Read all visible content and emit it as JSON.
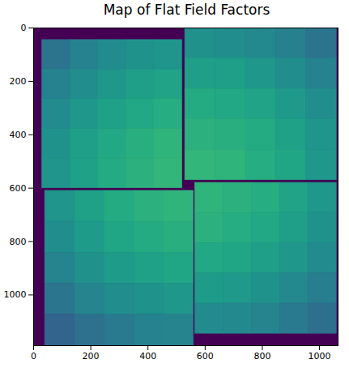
{
  "chart_data": {
    "type": "heatmap",
    "title": "Map of Flat Field Factors",
    "color": "viridis",
    "xlim": [
      0,
      1065
    ],
    "ylim": [
      1190,
      0
    ],
    "xticks": [
      0,
      200,
      400,
      600,
      800,
      1000
    ],
    "yticks": [
      0,
      200,
      400,
      600,
      800,
      1000
    ],
    "zlim": [
      0,
      1
    ],
    "background_value": 0,
    "tiles": [
      {
        "x": [
          30,
          520
        ],
        "y": [
          45,
          600
        ],
        "values": [
          [
            0.38,
            0.44,
            0.48,
            0.51,
            0.52
          ],
          [
            0.44,
            0.49,
            0.53,
            0.56,
            0.58
          ],
          [
            0.48,
            0.53,
            0.57,
            0.6,
            0.62
          ],
          [
            0.51,
            0.56,
            0.6,
            0.63,
            0.65
          ],
          [
            0.52,
            0.57,
            0.61,
            0.64,
            0.66
          ]
        ]
      },
      {
        "x": [
          530,
          1060
        ],
        "y": [
          0,
          570
        ],
        "values": [
          [
            0.5,
            0.49,
            0.47,
            0.43,
            0.38
          ],
          [
            0.56,
            0.56,
            0.53,
            0.49,
            0.44
          ],
          [
            0.61,
            0.6,
            0.58,
            0.54,
            0.49
          ],
          [
            0.64,
            0.63,
            0.61,
            0.57,
            0.52
          ],
          [
            0.66,
            0.65,
            0.62,
            0.59,
            0.53
          ]
        ]
      },
      {
        "x": [
          40,
          560
        ],
        "y": [
          610,
          1190
        ],
        "values": [
          [
            0.52,
            0.57,
            0.61,
            0.64,
            0.65
          ],
          [
            0.49,
            0.55,
            0.59,
            0.61,
            0.63
          ],
          [
            0.45,
            0.5,
            0.55,
            0.57,
            0.59
          ],
          [
            0.39,
            0.45,
            0.49,
            0.51,
            0.53
          ],
          [
            0.32,
            0.37,
            0.41,
            0.44,
            0.45
          ]
        ]
      },
      {
        "x": [
          565,
          1060
        ],
        "y": [
          580,
          1145
        ],
        "values": [
          [
            0.65,
            0.64,
            0.62,
            0.58,
            0.53
          ],
          [
            0.64,
            0.62,
            0.6,
            0.56,
            0.51
          ],
          [
            0.6,
            0.59,
            0.56,
            0.53,
            0.48
          ],
          [
            0.55,
            0.54,
            0.51,
            0.47,
            0.42
          ],
          [
            0.48,
            0.47,
            0.45,
            0.41,
            0.36
          ]
        ]
      }
    ]
  }
}
